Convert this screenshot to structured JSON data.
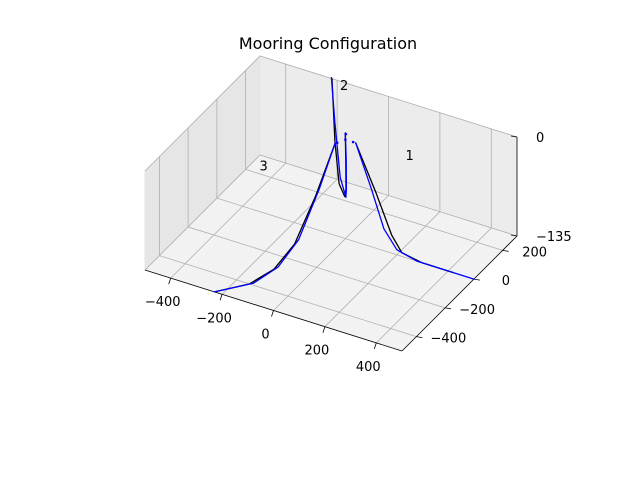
{
  "chart_data": {
    "type": "line3d",
    "title": "Mooring Configuration",
    "xlabel": "",
    "ylabel": "",
    "zlabel": "",
    "xlim": [
      -500,
      500
    ],
    "ylim": [
      -500,
      300
    ],
    "zlim": [
      -135,
      0
    ],
    "x_ticks": [
      "−400",
      "−200",
      "0",
      "200",
      "400"
    ],
    "y_ticks": [
      "200",
      "0",
      "−200",
      "−400"
    ],
    "z_ticks": [
      "0",
      "−135"
    ],
    "grid": true,
    "line_labels": [
      {
        "text": "1",
        "x": 250,
        "y": 0,
        "z": 0
      },
      {
        "text": "2",
        "x": -150,
        "y": 260,
        "z": 0
      },
      {
        "text": "3",
        "x": -150,
        "y": -300,
        "z": 0
      }
    ],
    "series": [
      {
        "color": "#000000",
        "points": [
          [
            40,
            0,
            0
          ],
          [
            120,
            0,
            -60
          ],
          [
            180,
            0,
            -110
          ],
          [
            220,
            0,
            -130
          ],
          [
            300,
            0,
            -135
          ],
          [
            420,
            0,
            -135
          ]
        ]
      },
      {
        "color": "#0000ff",
        "points": [
          [
            40,
            0,
            0
          ],
          [
            100,
            0,
            -55
          ],
          [
            150,
            0,
            -105
          ],
          [
            200,
            0,
            -128
          ],
          [
            280,
            0,
            -135
          ],
          [
            440,
            0,
            -135
          ],
          [
            500,
            0,
            -135
          ]
        ]
      },
      {
        "color": "#000000",
        "points": [
          [
            -20,
            35,
            0
          ],
          [
            -60,
            110,
            -60
          ],
          [
            -90,
            165,
            -110
          ],
          [
            -120,
            210,
            -132
          ],
          [
            -170,
            260,
            -130
          ],
          [
            -200,
            285,
            -80
          ],
          [
            -220,
            300,
            0
          ]
        ]
      },
      {
        "color": "#0000ff",
        "points": [
          [
            -20,
            35,
            0
          ],
          [
            -50,
            95,
            -50
          ],
          [
            -80,
            150,
            -105
          ],
          [
            -110,
            200,
            -130
          ],
          [
            -160,
            250,
            -118
          ],
          [
            -200,
            285,
            -55
          ],
          [
            -225,
            305,
            0
          ]
        ]
      },
      {
        "color": "#000000",
        "points": [
          [
            -20,
            -35,
            0
          ],
          [
            -50,
            -120,
            -60
          ],
          [
            -80,
            -210,
            -110
          ],
          [
            -110,
            -300,
            -130
          ],
          [
            -150,
            -400,
            -135
          ],
          [
            -230,
            -500,
            -135
          ]
        ]
      },
      {
        "color": "#0000ff",
        "points": [
          [
            -20,
            -35,
            0
          ],
          [
            -40,
            -110,
            -50
          ],
          [
            -70,
            -200,
            -105
          ],
          [
            -100,
            -290,
            -128
          ],
          [
            -140,
            -390,
            -135
          ],
          [
            -230,
            -500,
            -135
          ]
        ]
      }
    ]
  }
}
